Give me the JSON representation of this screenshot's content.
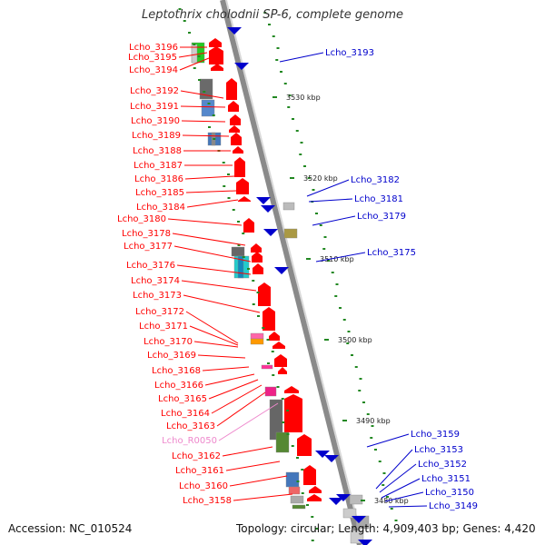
{
  "title": "Leptothrix cholodnii SP-6, complete genome",
  "accession": "Accession: NC_010524",
  "summary": "Topology: circular; Length: 4,909,403 bp; Genes: 4,420",
  "colors": {
    "forward_gene": "#ff0000",
    "reverse_gene": "#0000cc",
    "rna_label": "#ee88cc",
    "backbone": "#999999",
    "gc_tick": "#228822"
  },
  "scale_ticks": [
    "3530 kbp",
    "3520 kbp",
    "3510 kbp",
    "3500 kbp",
    "3490 kbp",
    "3480 kbp"
  ],
  "left_labels": [
    "Lcho_3196",
    "Lcho_3195",
    "Lcho_3194",
    "Lcho_3192",
    "Lcho_3191",
    "Lcho_3190",
    "Lcho_3189",
    "Lcho_3188",
    "Lcho_3187",
    "Lcho_3186",
    "Lcho_3185",
    "Lcho_3184",
    "Lcho_3180",
    "Lcho_3178",
    "Lcho_3177",
    "Lcho_3176",
    "Lcho_3174",
    "Lcho_3173",
    "Lcho_3172",
    "Lcho_3171",
    "Lcho_3170",
    "Lcho_3169",
    "Lcho_3168",
    "Lcho_3166",
    "Lcho_3165",
    "Lcho_3164",
    "Lcho_3163",
    "Lcho_R0050",
    "Lcho_3162",
    "Lcho_3161",
    "Lcho_3160",
    "Lcho_3158"
  ],
  "right_labels": [
    "Lcho_3193",
    "Lcho_3182",
    "Lcho_3181",
    "Lcho_3179",
    "Lcho_3175",
    "Lcho_3159",
    "Lcho_3153",
    "Lcho_3152",
    "Lcho_3151",
    "Lcho_3150",
    "Lcho_3149"
  ]
}
